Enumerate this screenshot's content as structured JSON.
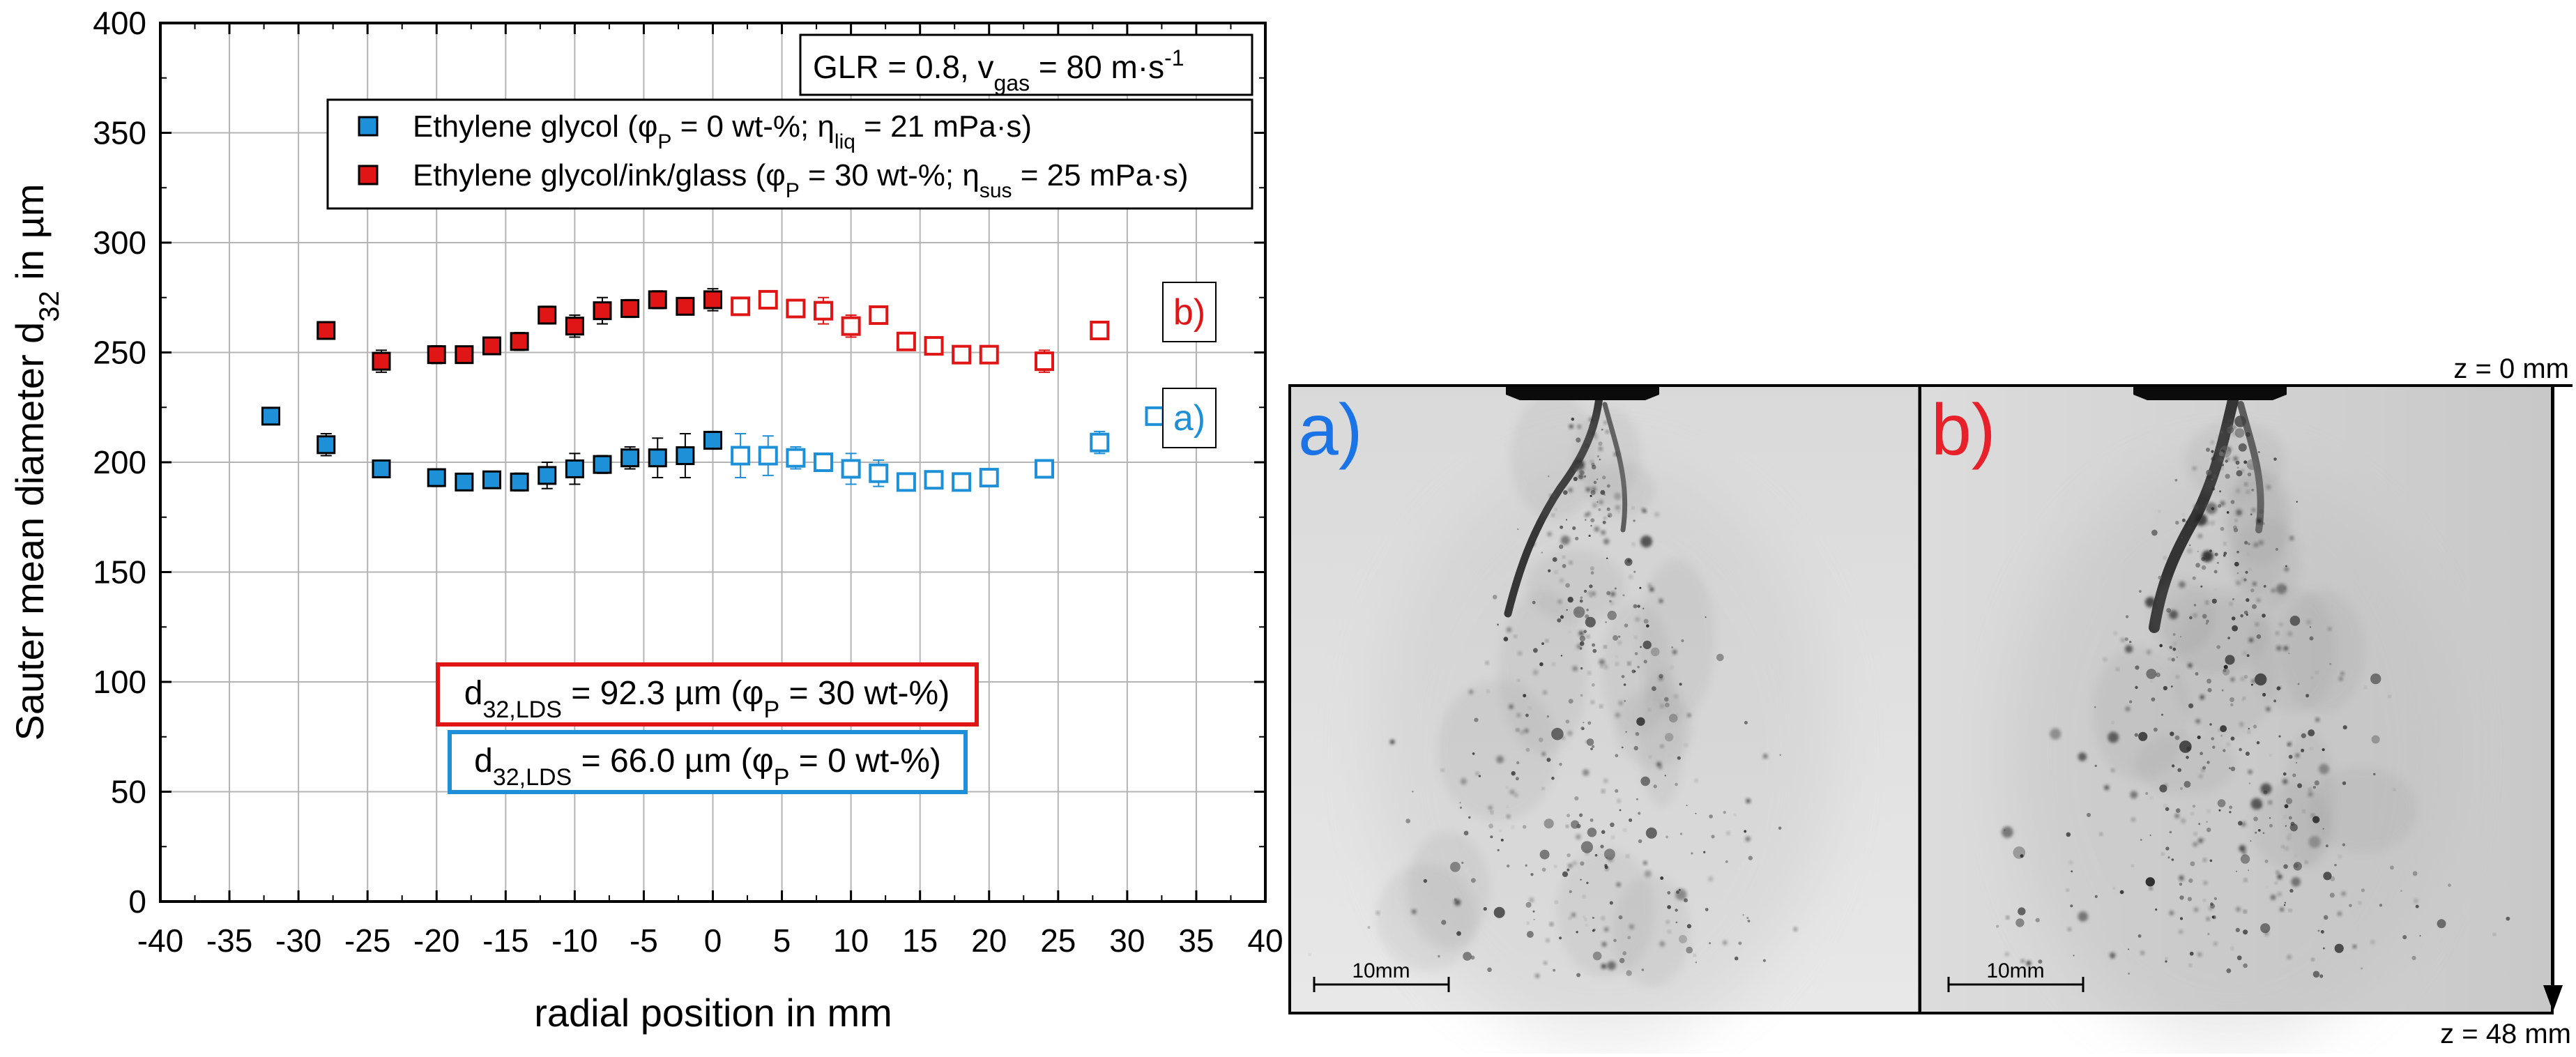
{
  "chart_data": {
    "type": "scatter",
    "xlabel": "radial position in mm",
    "ylabel": "Sauter mean diameter d",
    "ylabel_sub": "32",
    "ylabel_suffix": " in µm",
    "xlim": [
      -40,
      40
    ],
    "ylim": [
      0,
      400
    ],
    "x_ticks": [
      -40,
      -35,
      -30,
      -25,
      -20,
      -15,
      -10,
      -5,
      0,
      5,
      10,
      15,
      20,
      25,
      30,
      35,
      40
    ],
    "y_ticks": [
      0,
      50,
      100,
      150,
      200,
      250,
      300,
      350,
      400
    ],
    "grid": true,
    "series": [
      {
        "name": "Ethylene glycol (φP = 0 wt-%; ηliq = 21 mPa·s)",
        "legend": {
          "pre": "Ethylene glycol (φ",
          "s1": "P",
          "mid": " = 0 wt-%; η",
          "s2": "liq",
          "post": " = 21 mPa·s)"
        },
        "color": "#1e90d8",
        "filled_x": [
          -32,
          -28,
          -24,
          -20,
          -18,
          -16,
          -14,
          -12,
          -10,
          -8,
          -6,
          -4,
          -2,
          0
        ],
        "filled_y": [
          221,
          208,
          197,
          193,
          191,
          192,
          191,
          194,
          197,
          199,
          202,
          202,
          203,
          210
        ],
        "filled_err": [
          3,
          5,
          3,
          4,
          3,
          3,
          4,
          6,
          7,
          4,
          5,
          9,
          10,
          4
        ],
        "open_x": [
          2,
          4,
          6,
          8,
          10,
          12,
          14,
          16,
          18,
          20,
          24,
          28,
          32
        ],
        "open_y": [
          203,
          203,
          202,
          200,
          197,
          195,
          191,
          192,
          191,
          193,
          197,
          209,
          221
        ],
        "open_err": [
          10,
          9,
          5,
          4,
          7,
          6,
          4,
          3,
          3,
          4,
          3,
          5,
          3
        ]
      },
      {
        "name": "Ethylene glycol/ink/glass (φP = 30 wt-%; ηsus = 25 mPa·s)",
        "legend": {
          "pre": "Ethylene glycol/ink/glass (φ",
          "s1": "P",
          "mid": " = 30 wt-%; η",
          "s2": "sus",
          "post": " = 25 mPa·s)"
        },
        "color": "#e01515",
        "filled_x": [
          -28,
          -24,
          -20,
          -18,
          -16,
          -14,
          -12,
          -10,
          -8,
          -6,
          -4,
          -2,
          0
        ],
        "filled_y": [
          260,
          246,
          249,
          249,
          253,
          255,
          267,
          262,
          269,
          270,
          274,
          271,
          274
        ],
        "filled_err": [
          3,
          5,
          4,
          3,
          3,
          4,
          4,
          5,
          6,
          4,
          4,
          3,
          5
        ],
        "open_x": [
          2,
          4,
          6,
          8,
          10,
          12,
          14,
          16,
          18,
          20,
          24,
          28
        ],
        "open_y": [
          271,
          274,
          270,
          269,
          262,
          267,
          255,
          253,
          249,
          249,
          246,
          260
        ],
        "open_err": [
          3,
          4,
          4,
          6,
          5,
          4,
          4,
          3,
          3,
          4,
          5,
          3
        ]
      }
    ],
    "info_box": {
      "pre": "GLR = 0.8, v",
      "sub": "gas",
      "mid": " = 80 m·s",
      "sup": "-1"
    },
    "label_b": "b)",
    "label_a": "a)",
    "lds_red": {
      "pre": "d",
      "sub": "32,LDS",
      "mid": " = 92.3 µm (φ",
      "sub2": "P",
      "post": " = 30 wt-%)"
    },
    "lds_blue": {
      "pre": "d",
      "sub": "32,LDS",
      "mid": " = 66.0 µm (φ",
      "sub2": "P",
      "post": " = 0 wt-%)"
    }
  },
  "photos": {
    "label_a": "a)",
    "label_b": "b)",
    "z_top": "z = 0 mm",
    "z_bottom": "z = 48 mm",
    "scale_a": "10mm",
    "scale_b": "10mm"
  },
  "colors": {
    "blue": "#1e90d8",
    "red": "#e01515",
    "photo_label_blue": "#1a74e8",
    "photo_label_red": "#e8202a"
  }
}
